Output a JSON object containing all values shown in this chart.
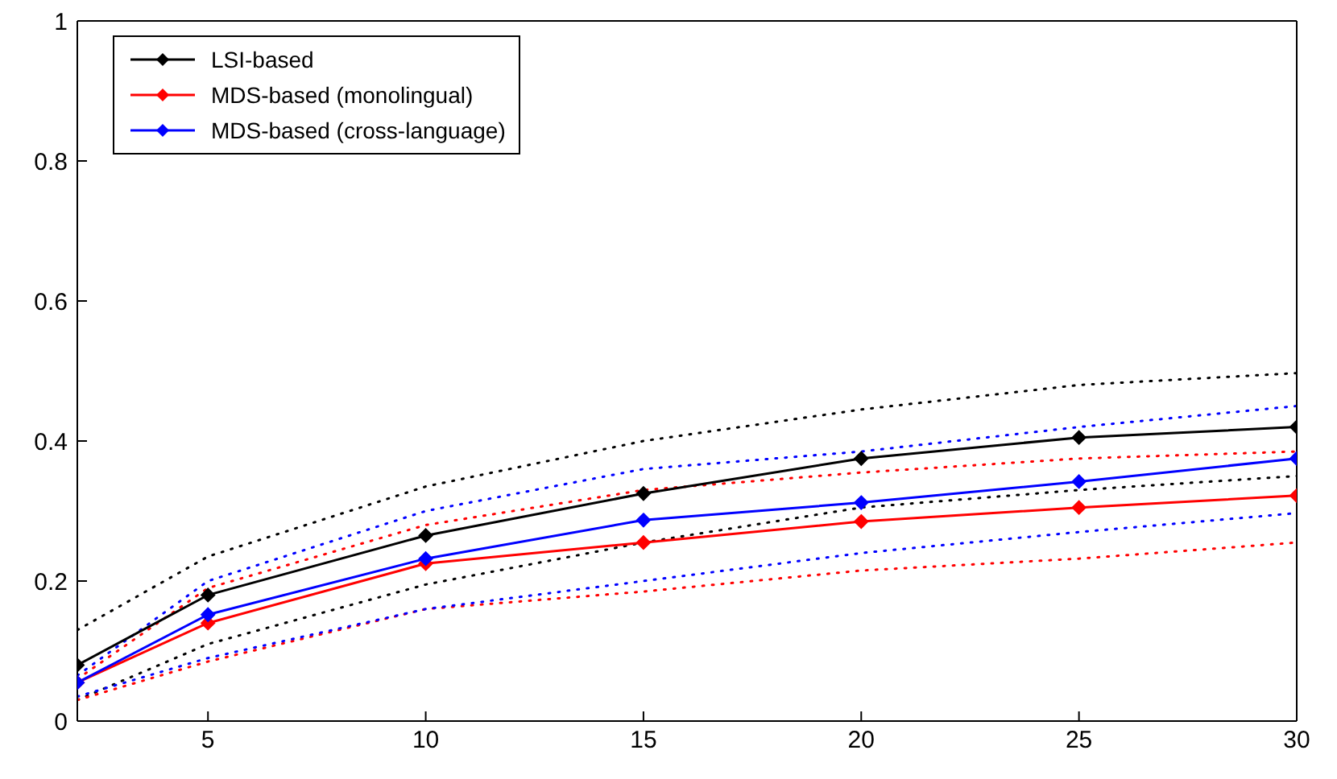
{
  "chart_data": {
    "type": "line",
    "x": [
      2,
      5,
      10,
      15,
      20,
      25,
      30
    ],
    "xlim": [
      2,
      30
    ],
    "xticks": [
      5,
      10,
      15,
      20,
      25,
      30
    ],
    "ylim": [
      0,
      1
    ],
    "yticks": [
      0,
      0.2,
      0.4,
      0.6,
      0.8,
      1
    ],
    "legend": "top left",
    "marker": "diamond",
    "line_style": "solid",
    "series": [
      {
        "color": "#000000",
        "line_style": "dotted",
        "marker": "none",
        "values": [
          0.03,
          0.11,
          0.195,
          0.255,
          0.305,
          0.33,
          0.35
        ]
      },
      {
        "color": "#000000",
        "line_style": "dotted",
        "marker": "none",
        "values": [
          0.13,
          0.235,
          0.335,
          0.4,
          0.445,
          0.48,
          0.497
        ]
      },
      {
        "color": "#ff0000",
        "line_style": "dotted",
        "marker": "none",
        "values": [
          0.03,
          0.085,
          0.16,
          0.185,
          0.215,
          0.232,
          0.255
        ]
      },
      {
        "color": "#ff0000",
        "line_style": "dotted",
        "marker": "none",
        "values": [
          0.06,
          0.19,
          0.28,
          0.33,
          0.355,
          0.375,
          0.385
        ]
      },
      {
        "color": "#0000ff",
        "line_style": "dotted",
        "marker": "none",
        "values": [
          0.035,
          0.09,
          0.16,
          0.2,
          0.24,
          0.27,
          0.297
        ]
      },
      {
        "color": "#0000ff",
        "line_style": "dotted",
        "marker": "none",
        "values": [
          0.065,
          0.2,
          0.3,
          0.36,
          0.385,
          0.42,
          0.45
        ]
      },
      {
        "name": "LSI-based",
        "color": "#000000",
        "values": [
          0.08,
          0.18,
          0.265,
          0.325,
          0.375,
          0.405,
          0.42
        ]
      },
      {
        "name": "MDS-based (monolingual)",
        "color": "#ff0000",
        "values": [
          0.055,
          0.14,
          0.225,
          0.255,
          0.285,
          0.305,
          0.322
        ]
      },
      {
        "name": "MDS-based (cross-language)",
        "color": "#0000ff",
        "values": [
          0.055,
          0.152,
          0.232,
          0.287,
          0.312,
          0.342,
          0.375
        ]
      }
    ]
  }
}
